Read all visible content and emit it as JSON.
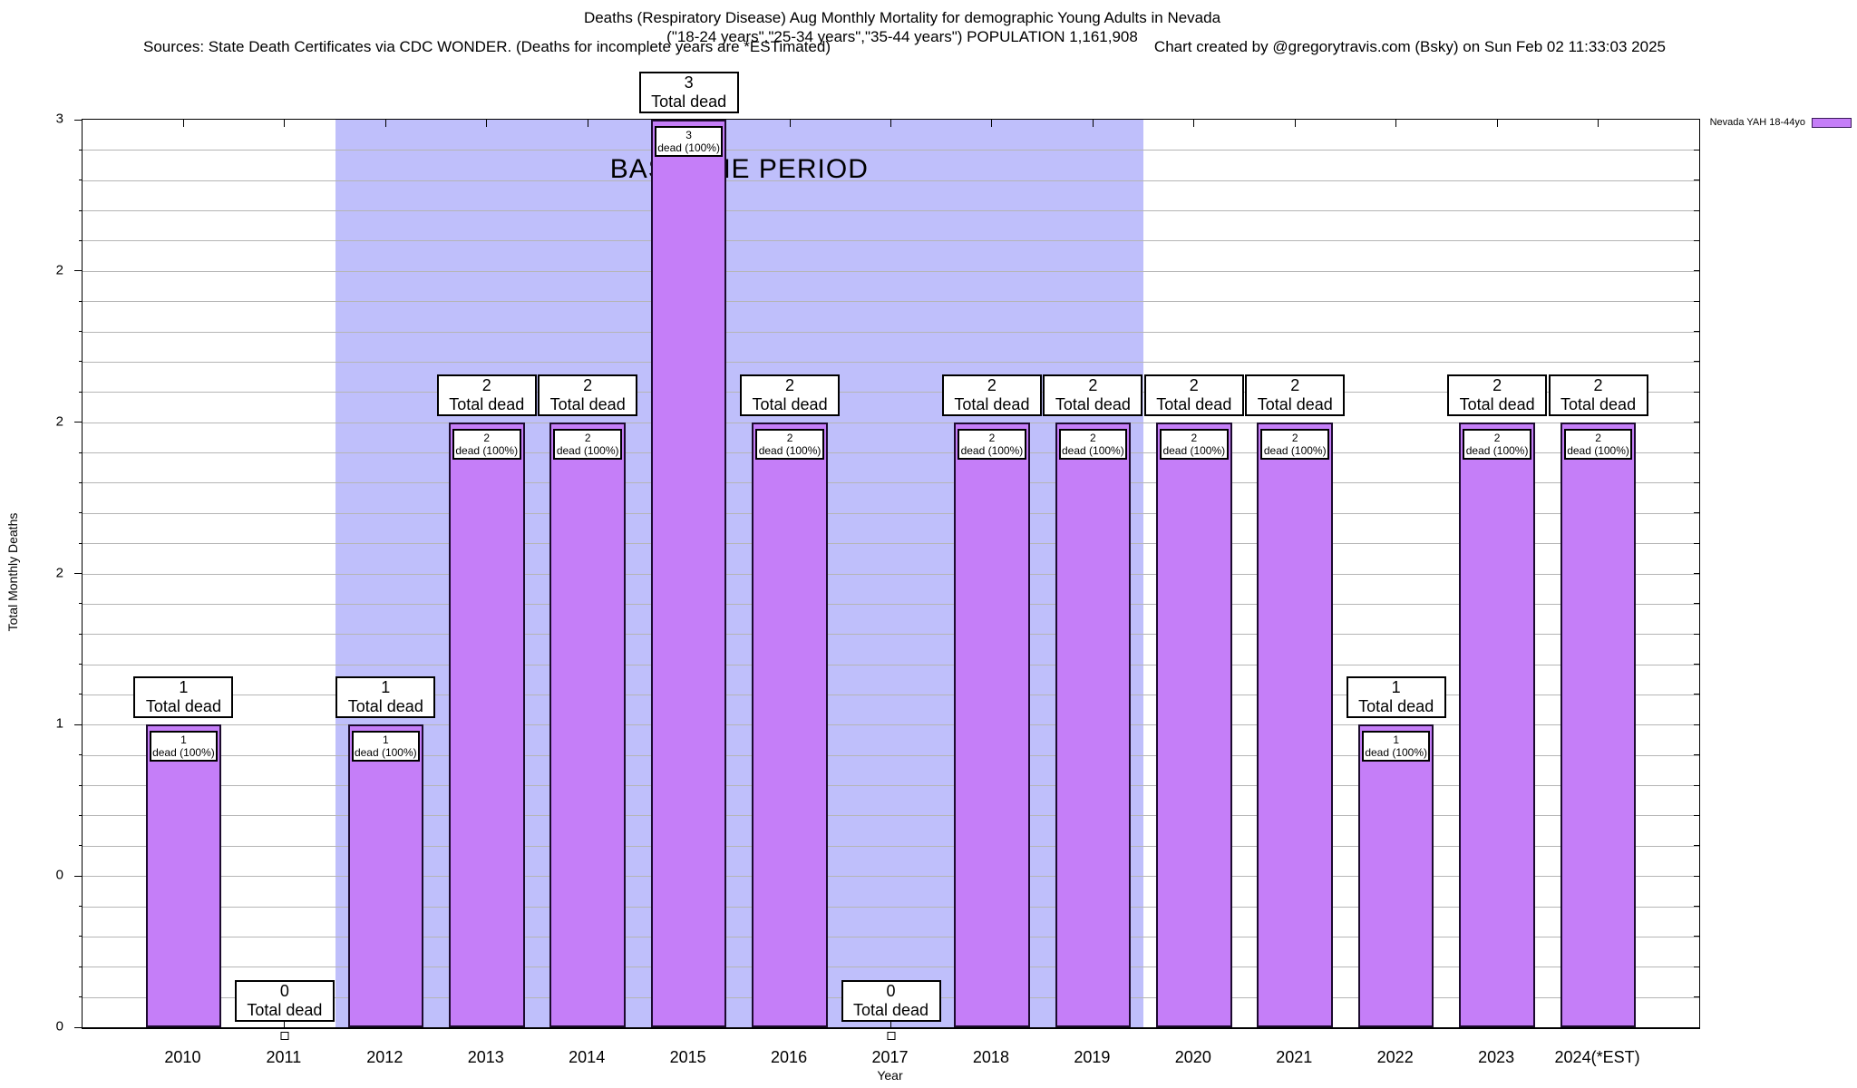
{
  "header": {
    "title": "Deaths (Respiratory Disease) Aug Monthly Mortality for demographic Young Adults in Nevada",
    "subtitle": "(\"18-24 years\",\"25-34 years\",\"35-44 years\") POPULATION 1,161,908",
    "sources": "Sources: State Death Certificates via CDC WONDER. (Deaths for incomplete years are *ESTimated)",
    "credit": "Chart created by @gregorytravis.com (Bsky) on Sun Feb 02 11:33:03 2025"
  },
  "legend": {
    "label": "Nevada YAH 18-44yo"
  },
  "axes": {
    "y_title": "Total Monthly Deaths",
    "x_title": "Year"
  },
  "chart_data": {
    "type": "bar",
    "title": "Deaths (Respiratory Disease) Aug Monthly Mortality for demographic Young Adults in Nevada",
    "xlabel": "Year",
    "ylabel": "Total Monthly Deaths",
    "categories": [
      "2010",
      "2011",
      "2012",
      "2013",
      "2014",
      "2015",
      "2016",
      "2017",
      "2018",
      "2019",
      "2020",
      "2021",
      "2022",
      "2023",
      "2024(*EST)"
    ],
    "series": [
      {
        "name": "Nevada YAH 18-44yo",
        "values": [
          1,
          0,
          1,
          2,
          2,
          3,
          2,
          0,
          2,
          2,
          2,
          2,
          1,
          2,
          2
        ]
      }
    ],
    "bar_outer_label": "Total dead",
    "bar_inner_label": "dead (100%)",
    "ylim": [
      0,
      3
    ],
    "ytick_step": 0.5,
    "ytick_labels_bottom_to_top": [
      "0",
      "0",
      "1",
      "2",
      "2",
      "2",
      "3"
    ],
    "minor_grid_step": 0.1,
    "grid": true,
    "legend_position": "top-right",
    "baseline_region": {
      "from": "2012",
      "to": "2019",
      "label": "BASELINE PERIOD"
    },
    "colors": {
      "bar": "#c57ef8",
      "bar_border": "#1c0b2e",
      "baseline_shade": "#bfbffb",
      "grid": "#b5b5b5",
      "label_box_bg": "#ffffff",
      "label_box_border": "#000000"
    }
  }
}
